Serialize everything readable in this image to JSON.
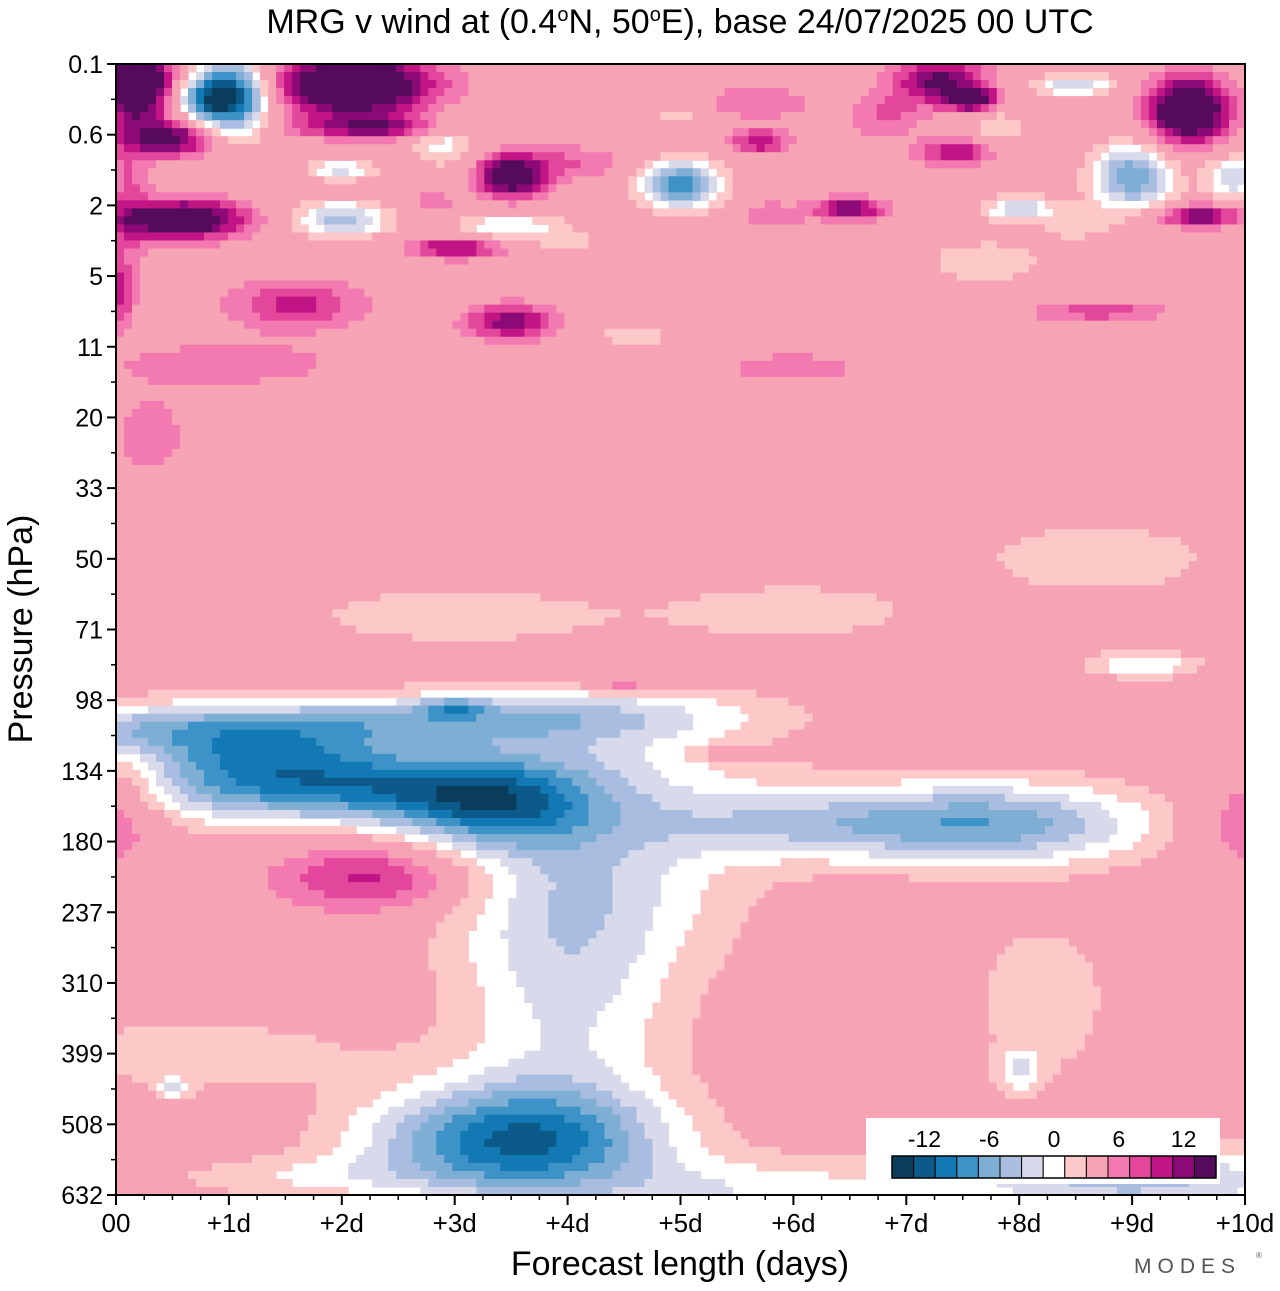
{
  "chart_data": {
    "type": "heatmap",
    "title": {
      "prefix": "MRG v wind at (0.4",
      "lat": "N, 50",
      "suffix": "E),  base 24/07/2025  00 UTC",
      "degree_symbol": "o"
    },
    "xlabel": "Forecast length (days)",
    "ylabel": "Pressure (hPa)",
    "x_ticks": [
      "00",
      "+1d",
      "+2d",
      "+3d",
      "+4d",
      "+5d",
      "+6d",
      "+7d",
      "+8d",
      "+9d",
      "+10d"
    ],
    "xlim": [
      0,
      10
    ],
    "y_ticks": [
      "0.1",
      "0.6",
      "2",
      "5",
      "11",
      "20",
      "33",
      "50",
      "71",
      "98",
      "134",
      "180",
      "237",
      "310",
      "399",
      "508",
      "632"
    ],
    "colorbar": {
      "labels": [
        "-12",
        "-6",
        "0",
        "6",
        "12"
      ],
      "label_values": [
        -12,
        -6,
        0,
        6,
        12
      ],
      "levels": [
        -15,
        -13.5,
        -12,
        -10.5,
        -9,
        -7.5,
        -6,
        -4.5,
        -3,
        -1.5,
        1.5,
        3,
        4.5,
        6,
        7.5,
        9,
        10.5,
        12,
        13.5,
        15
      ],
      "colors": [
        "#0a3c5c",
        "#0b5a8a",
        "#1279b5",
        "#3d93c8",
        "#7eaed3",
        "#a8bde0",
        "#d8d9ea",
        "#ffffff",
        "#fcc8c8",
        "#f7a3b6",
        "#f27ab0",
        "#e3479c",
        "#c21585",
        "#8c0a76",
        "#560a5c"
      ]
    },
    "blobs": [
      {
        "x": 0.2,
        "y": 0.6,
        "rx": 0.3,
        "ry": 0.9,
        "v": 14
      },
      {
        "x": 1.0,
        "y": 0.9,
        "rx": 0.35,
        "ry": 1.1,
        "v": -13
      },
      {
        "x": 2.1,
        "y": 0.6,
        "rx": 0.7,
        "ry": 0.9,
        "v": 13
      },
      {
        "x": 0.5,
        "y": 2.1,
        "rx": 0.4,
        "ry": 0.5,
        "v": 9
      },
      {
        "x": 0.6,
        "y": 4.4,
        "rx": 0.55,
        "ry": 0.55,
        "v": 11
      },
      {
        "x": 0.1,
        "y": 3.5,
        "rx": 0.2,
        "ry": 2.5,
        "v": 3
      },
      {
        "x": 0.0,
        "y": 6.5,
        "rx": 0.15,
        "ry": 1.0,
        "v": 5
      },
      {
        "x": 1.6,
        "y": 6.8,
        "rx": 0.6,
        "ry": 0.7,
        "v": 5
      },
      {
        "x": 1.0,
        "y": 8.5,
        "rx": 1.1,
        "ry": 0.7,
        "v": 2.5
      },
      {
        "x": 0.3,
        "y": 10.5,
        "rx": 0.35,
        "ry": 1.2,
        "v": 2.5
      },
      {
        "x": 2.0,
        "y": 3.0,
        "rx": 0.3,
        "ry": 0.3,
        "v": -5
      },
      {
        "x": 2.0,
        "y": 4.4,
        "rx": 0.4,
        "ry": 0.5,
        "v": -7
      },
      {
        "x": 2.9,
        "y": 2.2,
        "rx": 0.3,
        "ry": 0.7,
        "v": -4
      },
      {
        "x": 3.5,
        "y": 3.2,
        "rx": 0.3,
        "ry": 0.6,
        "v": 10
      },
      {
        "x": 3.0,
        "y": 5.2,
        "rx": 0.4,
        "ry": 0.3,
        "v": 7
      },
      {
        "x": 2.8,
        "y": 3.9,
        "rx": 0.2,
        "ry": 0.3,
        "v": 3
      },
      {
        "x": 3.5,
        "y": 4.6,
        "rx": 0.5,
        "ry": 0.4,
        "v": -4.5
      },
      {
        "x": 4.0,
        "y": 5.1,
        "rx": 0.25,
        "ry": 0.3,
        "v": -2.5
      },
      {
        "x": 5.0,
        "y": 1.5,
        "rx": 0.3,
        "ry": 0.2,
        "v": -2.5
      },
      {
        "x": 5.0,
        "y": 3.4,
        "rx": 0.35,
        "ry": 0.7,
        "v": -10
      },
      {
        "x": 5.7,
        "y": 1.1,
        "rx": 0.5,
        "ry": 0.5,
        "v": 3
      },
      {
        "x": 5.7,
        "y": 2.2,
        "rx": 0.25,
        "ry": 0.35,
        "v": 6
      },
      {
        "x": 5.8,
        "y": 4.3,
        "rx": 0.3,
        "ry": 0.4,
        "v": 3
      },
      {
        "x": 4.0,
        "y": 2.8,
        "rx": 0.6,
        "ry": 0.5,
        "v": 3
      },
      {
        "x": 6.5,
        "y": 4.1,
        "rx": 0.3,
        "ry": 0.3,
        "v": 8
      },
      {
        "x": 7.3,
        "y": 0.5,
        "rx": 0.4,
        "ry": 0.7,
        "v": 8
      },
      {
        "x": 7.5,
        "y": 2.5,
        "rx": 0.4,
        "ry": 0.4,
        "v": 6
      },
      {
        "x": 6.8,
        "y": 1.5,
        "rx": 0.3,
        "ry": 0.7,
        "v": 3
      },
      {
        "x": 8.5,
        "y": 0.6,
        "rx": 0.35,
        "ry": 0.3,
        "v": -6
      },
      {
        "x": 7.8,
        "y": 2.0,
        "rx": 0.25,
        "ry": 0.8,
        "v": -3
      },
      {
        "x": 9.0,
        "y": 3.2,
        "rx": 0.35,
        "ry": 0.9,
        "v": -9
      },
      {
        "x": 8.0,
        "y": 4.1,
        "rx": 0.3,
        "ry": 0.35,
        "v": -6
      },
      {
        "x": 8.5,
        "y": 4.5,
        "rx": 0.3,
        "ry": 0.5,
        "v": -2.5
      },
      {
        "x": 9.5,
        "y": 1.3,
        "rx": 0.35,
        "ry": 0.9,
        "v": 13
      },
      {
        "x": 9.6,
        "y": 4.3,
        "rx": 0.35,
        "ry": 0.3,
        "v": 8
      },
      {
        "x": 9.9,
        "y": 3.2,
        "rx": 0.25,
        "ry": 0.6,
        "v": -6
      },
      {
        "x": 7.7,
        "y": 5.6,
        "rx": 0.6,
        "ry": 0.7,
        "v": -2.5
      },
      {
        "x": 8.7,
        "y": 7.0,
        "rx": 0.6,
        "ry": 0.3,
        "v": 4
      },
      {
        "x": 3.5,
        "y": 7.3,
        "rx": 0.4,
        "ry": 0.5,
        "v": 7
      },
      {
        "x": 6.0,
        "y": 8.6,
        "rx": 0.6,
        "ry": 0.4,
        "v": 3
      },
      {
        "x": 4.6,
        "y": 7.7,
        "rx": 0.4,
        "ry": 0.3,
        "v": -2.5
      },
      {
        "x": 3.0,
        "y": 15.6,
        "rx": 1.5,
        "ry": 0.9,
        "v": -2.5
      },
      {
        "x": 6.0,
        "y": 15.5,
        "rx": 1.2,
        "ry": 0.9,
        "v": -2.5
      },
      {
        "x": 8.7,
        "y": 14.0,
        "rx": 1.2,
        "ry": 1.2,
        "v": -2.5
      },
      {
        "x": 9.1,
        "y": 17.0,
        "rx": 0.5,
        "ry": 0.4,
        "v": -4.5
      },
      {
        "x": 3.0,
        "y": 18.2,
        "rx": 0.3,
        "ry": 0.3,
        "v": -4.5
      },
      {
        "x": 4.5,
        "y": 17.6,
        "rx": 0.3,
        "ry": 0.2,
        "v": 4
      },
      {
        "x": 5.5,
        "y": 19.5,
        "rx": 0.35,
        "ry": 0.2,
        "v": 3
      },
      {
        "x": 10.0,
        "y": 21.5,
        "rx": 0.5,
        "ry": 1.4,
        "v": 3
      },
      {
        "x": 0.0,
        "y": 20.8,
        "rx": 0.45,
        "ry": 1.7,
        "v": 5
      },
      {
        "x": 2.3,
        "y": 23.0,
        "rx": 0.9,
        "ry": 1.0,
        "v": 5.5
      },
      {
        "x": 1.8,
        "y": 20.5,
        "rx": 1.4,
        "ry": 0.9,
        "v": -7
      },
      {
        "x": 1.3,
        "y": 19.5,
        "rx": 1.0,
        "ry": 0.8,
        "v": -4.5
      },
      {
        "x": 3.3,
        "y": 21.0,
        "rx": 0.9,
        "ry": 1.2,
        "v": -8
      },
      {
        "x": 4.0,
        "y": 26.0,
        "rx": 1.0,
        "ry": 5.0,
        "v": -4.5
      },
      {
        "x": 3.5,
        "y": 30.5,
        "rx": 1.3,
        "ry": 1.6,
        "v": -11
      },
      {
        "x": 4.3,
        "y": 23.0,
        "rx": 1.5,
        "ry": 2.8,
        "v": -3
      },
      {
        "x": 6.0,
        "y": 21.5,
        "rx": 1.4,
        "ry": 1.0,
        "v": -4.5
      },
      {
        "x": 7.8,
        "y": 21.5,
        "rx": 1.4,
        "ry": 1.2,
        "v": -8
      },
      {
        "x": 8.2,
        "y": 26.5,
        "rx": 0.6,
        "ry": 2.2,
        "v": -3
      },
      {
        "x": 8.0,
        "y": 28.5,
        "rx": 0.2,
        "ry": 0.6,
        "v": -4
      },
      {
        "x": 0.7,
        "y": 28.0,
        "rx": 1.6,
        "ry": 1.1,
        "v": -2.5
      },
      {
        "x": 8.3,
        "y": 31.5,
        "rx": 2.0,
        "ry": 1.3,
        "v": -2.5
      },
      {
        "x": 9.2,
        "y": 31.6,
        "rx": 1.6,
        "ry": 0.9,
        "v": -4.5
      },
      {
        "x": 5.5,
        "y": 31.9,
        "rx": 1.3,
        "ry": 0.9,
        "v": -3.5
      },
      {
        "x": 0.5,
        "y": 29.0,
        "rx": 0.15,
        "ry": 0.3,
        "v": -4
      },
      {
        "x": 1.6,
        "y": 31.5,
        "rx": 1.3,
        "ry": 0.6,
        "v": -2.5
      },
      {
        "x": 7.6,
        "y": 1.0,
        "rx": 0.2,
        "ry": 0.3,
        "v": 10
      },
      {
        "x": 0.8,
        "y": 1.0,
        "rx": 0.35,
        "ry": 0.5,
        "v": -5
      },
      {
        "x": 2.3,
        "y": 1.8,
        "rx": 0.7,
        "ry": 0.3,
        "v": 6
      }
    ],
    "bands": [
      {
        "y": 18.8,
        "v": -5.5,
        "w": 0.7
      },
      {
        "y": 20.0,
        "v": -4.0,
        "w": 1.7
      }
    ]
  },
  "watermark": "MODES"
}
